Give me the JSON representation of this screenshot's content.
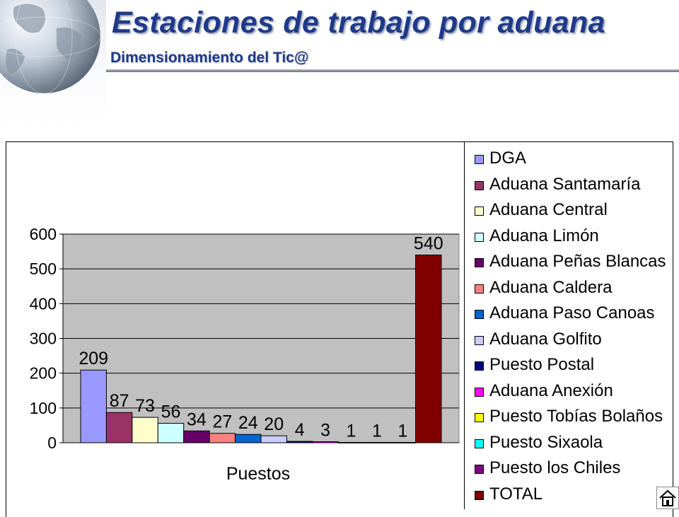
{
  "slide": {
    "title": "Estaciones de trabajo por aduana",
    "subtitle": "Dimensionamiento del Tic@"
  },
  "icons": {
    "globe": "globe-icon",
    "home": "home-icon"
  },
  "chart_data": {
    "type": "bar",
    "title": "",
    "xlabel": "Puestos",
    "ylabel": "",
    "ylim": [
      0,
      600
    ],
    "yticks": [
      0,
      100,
      200,
      300,
      400,
      500,
      600
    ],
    "grid": true,
    "legend_position": "right",
    "categories": [
      "Puestos"
    ],
    "series": [
      {
        "name": "DGA",
        "values": [
          209
        ],
        "color": "#9999ff"
      },
      {
        "name": "Aduana Santamaría",
        "values": [
          87
        ],
        "color": "#993366"
      },
      {
        "name": "Aduana Central",
        "values": [
          73
        ],
        "color": "#ffffcc"
      },
      {
        "name": "Aduana Limón",
        "values": [
          56
        ],
        "color": "#ccffff"
      },
      {
        "name": "Aduana Peñas Blancas",
        "values": [
          34
        ],
        "color": "#660066"
      },
      {
        "name": "Aduana Caldera",
        "values": [
          27
        ],
        "color": "#ff8080"
      },
      {
        "name": "Aduana Paso Canoas",
        "values": [
          24
        ],
        "color": "#0066cc"
      },
      {
        "name": "Aduana Golfito",
        "values": [
          20
        ],
        "color": "#ccccff"
      },
      {
        "name": "Puesto Postal",
        "values": [
          4
        ],
        "color": "#000080"
      },
      {
        "name": "Aduana Anexión",
        "values": [
          3
        ],
        "color": "#ff00ff"
      },
      {
        "name": "Puesto Tobías Bolaños",
        "values": [
          1
        ],
        "color": "#ffff00"
      },
      {
        "name": "Puesto Sixaola",
        "values": [
          1
        ],
        "color": "#00ffff"
      },
      {
        "name": "Puesto los Chiles",
        "values": [
          1
        ],
        "color": "#800080"
      },
      {
        "name": "TOTAL",
        "values": [
          540
        ],
        "color": "#800000"
      }
    ]
  }
}
